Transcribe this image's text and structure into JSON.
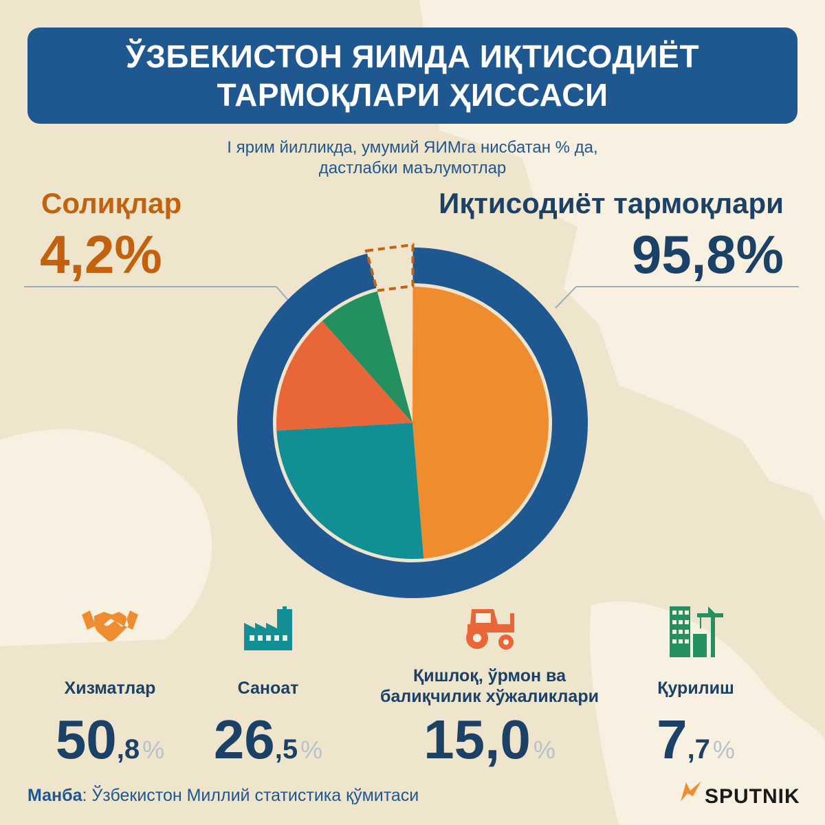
{
  "title": {
    "line1": "ЎЗБЕКИСТОН ЯИМДА ИҚТИСОДИЁТ",
    "line2": "ТАРМОҚЛАРИ  ҲИССАСИ"
  },
  "subtitle": {
    "line1": "І ярим йилликда, умумий ЯИМга нисбатан % да,",
    "line2": "дастлабки маълумотлар"
  },
  "taxes": {
    "label": "Солиқлар",
    "value": "4,2%"
  },
  "sectors_total": {
    "label": "Иқтисодиёт тармоқлари",
    "value": "95,8%"
  },
  "sectors": [
    {
      "name": "Хизматлар",
      "int": "50",
      "dec": ",8",
      "pct": "%",
      "icon": "handshake-icon"
    },
    {
      "name": "Саноат",
      "int": "26",
      "dec": ",5",
      "pct": "%",
      "icon": "factory-icon"
    },
    {
      "name_line1": "Қишлоқ, ўрмон ва",
      "name_line2": "балиқчилик хўжаликлари",
      "int": "15,0",
      "pct": "%",
      "icon": "tractor-icon"
    },
    {
      "name": "Қурилиш",
      "int": "7",
      "dec": ",7",
      "pct": "%",
      "icon": "building-crane-icon"
    }
  ],
  "source": {
    "label": "Манба",
    "text": ": Ўзбекистон Миллий статистика қўмитаси"
  },
  "brand": {
    "name": "SPUTNIK"
  },
  "colors": {
    "services": "#f08c30",
    "industry": "#128f94",
    "agriculture": "#e86637",
    "construction": "#248f5f",
    "ring": "#1f5790",
    "taxes": "#c2620f",
    "background": "#f8f1e1"
  },
  "chart_data": {
    "type": "pie",
    "title": "ЎЗБЕКИСТОН ЯИМДА ИҚТИСОДИЁТ ТАРМОҚЛАРИ  ҲИССАСИ",
    "subtitle": "І ярим йилликда, умумий ЯИМга нисбатан % да, дастлабки маълумотлар",
    "outer_ring": [
      {
        "label": "Иқтисодиёт тармоқлари",
        "value": 95.8
      },
      {
        "label": "Солиқлар",
        "value": 4.2
      }
    ],
    "slices": [
      {
        "label": "Хизматлар",
        "value": 50.8
      },
      {
        "label": "Саноат",
        "value": 26.5
      },
      {
        "label": "Қишлоқ, ўрмон ва балиқчилик хўжаликлари",
        "value": 15.0
      },
      {
        "label": "Қурилиш",
        "value": 7.7
      }
    ],
    "unit": "%"
  }
}
